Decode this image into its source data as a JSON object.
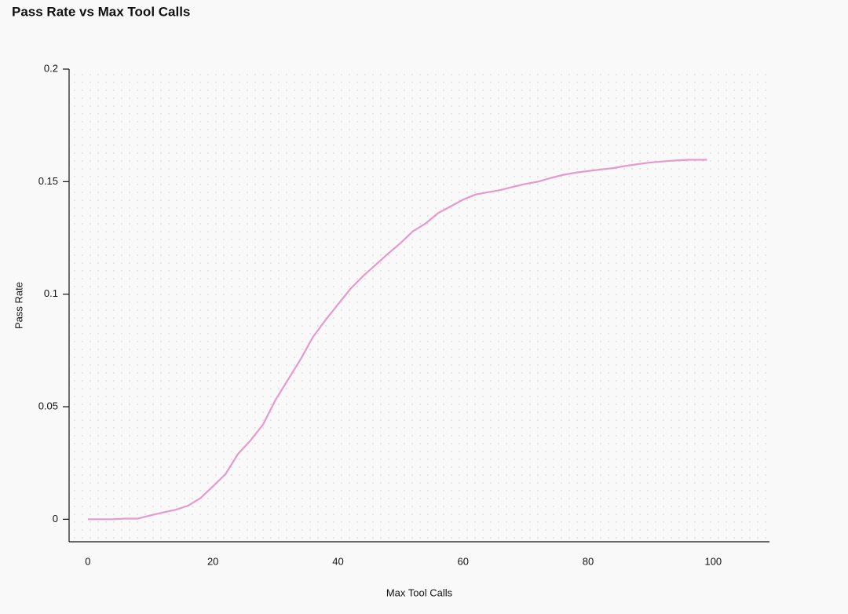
{
  "chart_data": {
    "type": "line",
    "title": "Pass Rate vs Max Tool Calls",
    "x_label": "Max Tool Calls",
    "y_label": "Pass Rate",
    "x": [
      0,
      2,
      4,
      6,
      8,
      10,
      12,
      14,
      16,
      18,
      20,
      22,
      24,
      26,
      28,
      30,
      32,
      34,
      36,
      38,
      40,
      42,
      44,
      46,
      48,
      50,
      52,
      54,
      56,
      58,
      60,
      62,
      64,
      66,
      68,
      70,
      72,
      74,
      76,
      78,
      80,
      82,
      84,
      86,
      88,
      90,
      92,
      94,
      96,
      99
    ],
    "series": [
      {
        "name": "Pass Rate",
        "color": "#e69acb",
        "values": [
          0,
          0,
          0,
          0.0003,
          0.0003,
          0.0017,
          0.003,
          0.0042,
          0.006,
          0.0094,
          0.0146,
          0.02,
          0.029,
          0.035,
          0.042,
          0.053,
          0.062,
          0.071,
          0.081,
          0.0885,
          0.0955,
          0.1024,
          0.108,
          0.113,
          0.118,
          0.1227,
          0.128,
          0.1314,
          0.136,
          0.139,
          0.142,
          0.1443,
          0.1453,
          0.1463,
          0.1477,
          0.149,
          0.15,
          0.1516,
          0.153,
          0.154,
          0.1547,
          0.1554,
          0.156,
          0.157,
          0.1578,
          0.1585,
          0.159,
          0.1594,
          0.1597,
          0.1597
        ]
      }
    ],
    "xlim": [
      -3,
      109
    ],
    "ylim": [
      -0.01,
      0.2
    ],
    "xticks": [
      0,
      20,
      40,
      60,
      80,
      100
    ],
    "yticks": [
      0,
      0.05,
      0.1,
      0.15,
      0.2
    ]
  }
}
